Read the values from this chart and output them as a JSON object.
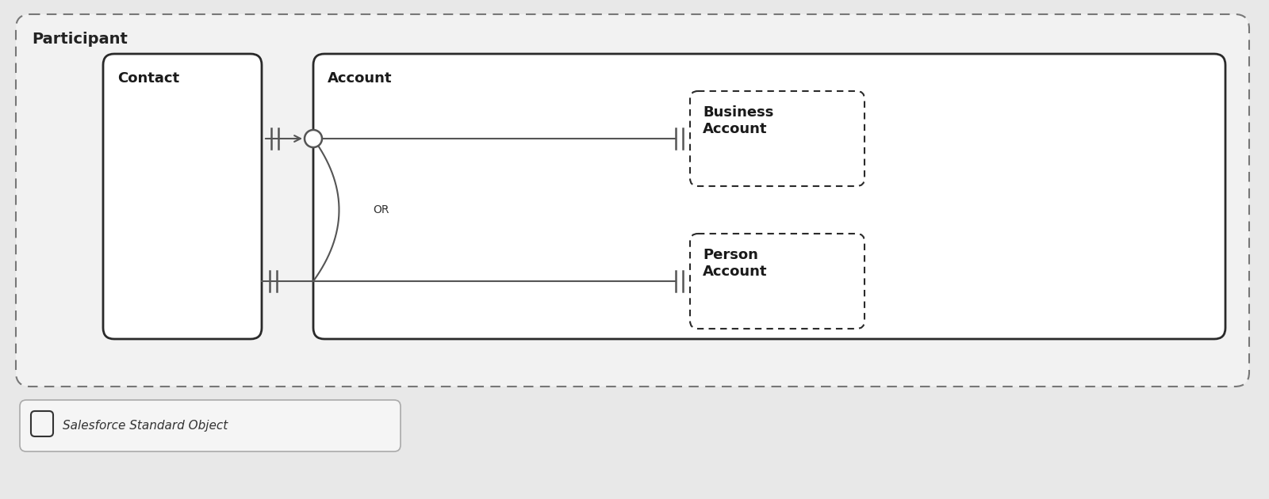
{
  "bg_color": "#e8e8e8",
  "diagram_bg": "#e8e8e8",
  "inner_bg": "#f2f2f2",
  "box_bg": "#ffffff",
  "participant_label": "Participant",
  "contact_label": "Contact",
  "account_label": "Account",
  "business_account_label": "Business\nAccount",
  "person_account_label": "Person\nAccount",
  "or_label": "OR",
  "legend_label": "Salesforce Standard Object",
  "line_color": "#555555",
  "box_edge_color": "#2a2a2a",
  "dashed_edge_color": "#2a2a2a",
  "outer_dashed_color": "#777777",
  "font_size_title": 14,
  "font_size_label": 13,
  "font_size_or": 10,
  "font_size_legend": 11,
  "figw": 16.0,
  "figh": 6.3
}
